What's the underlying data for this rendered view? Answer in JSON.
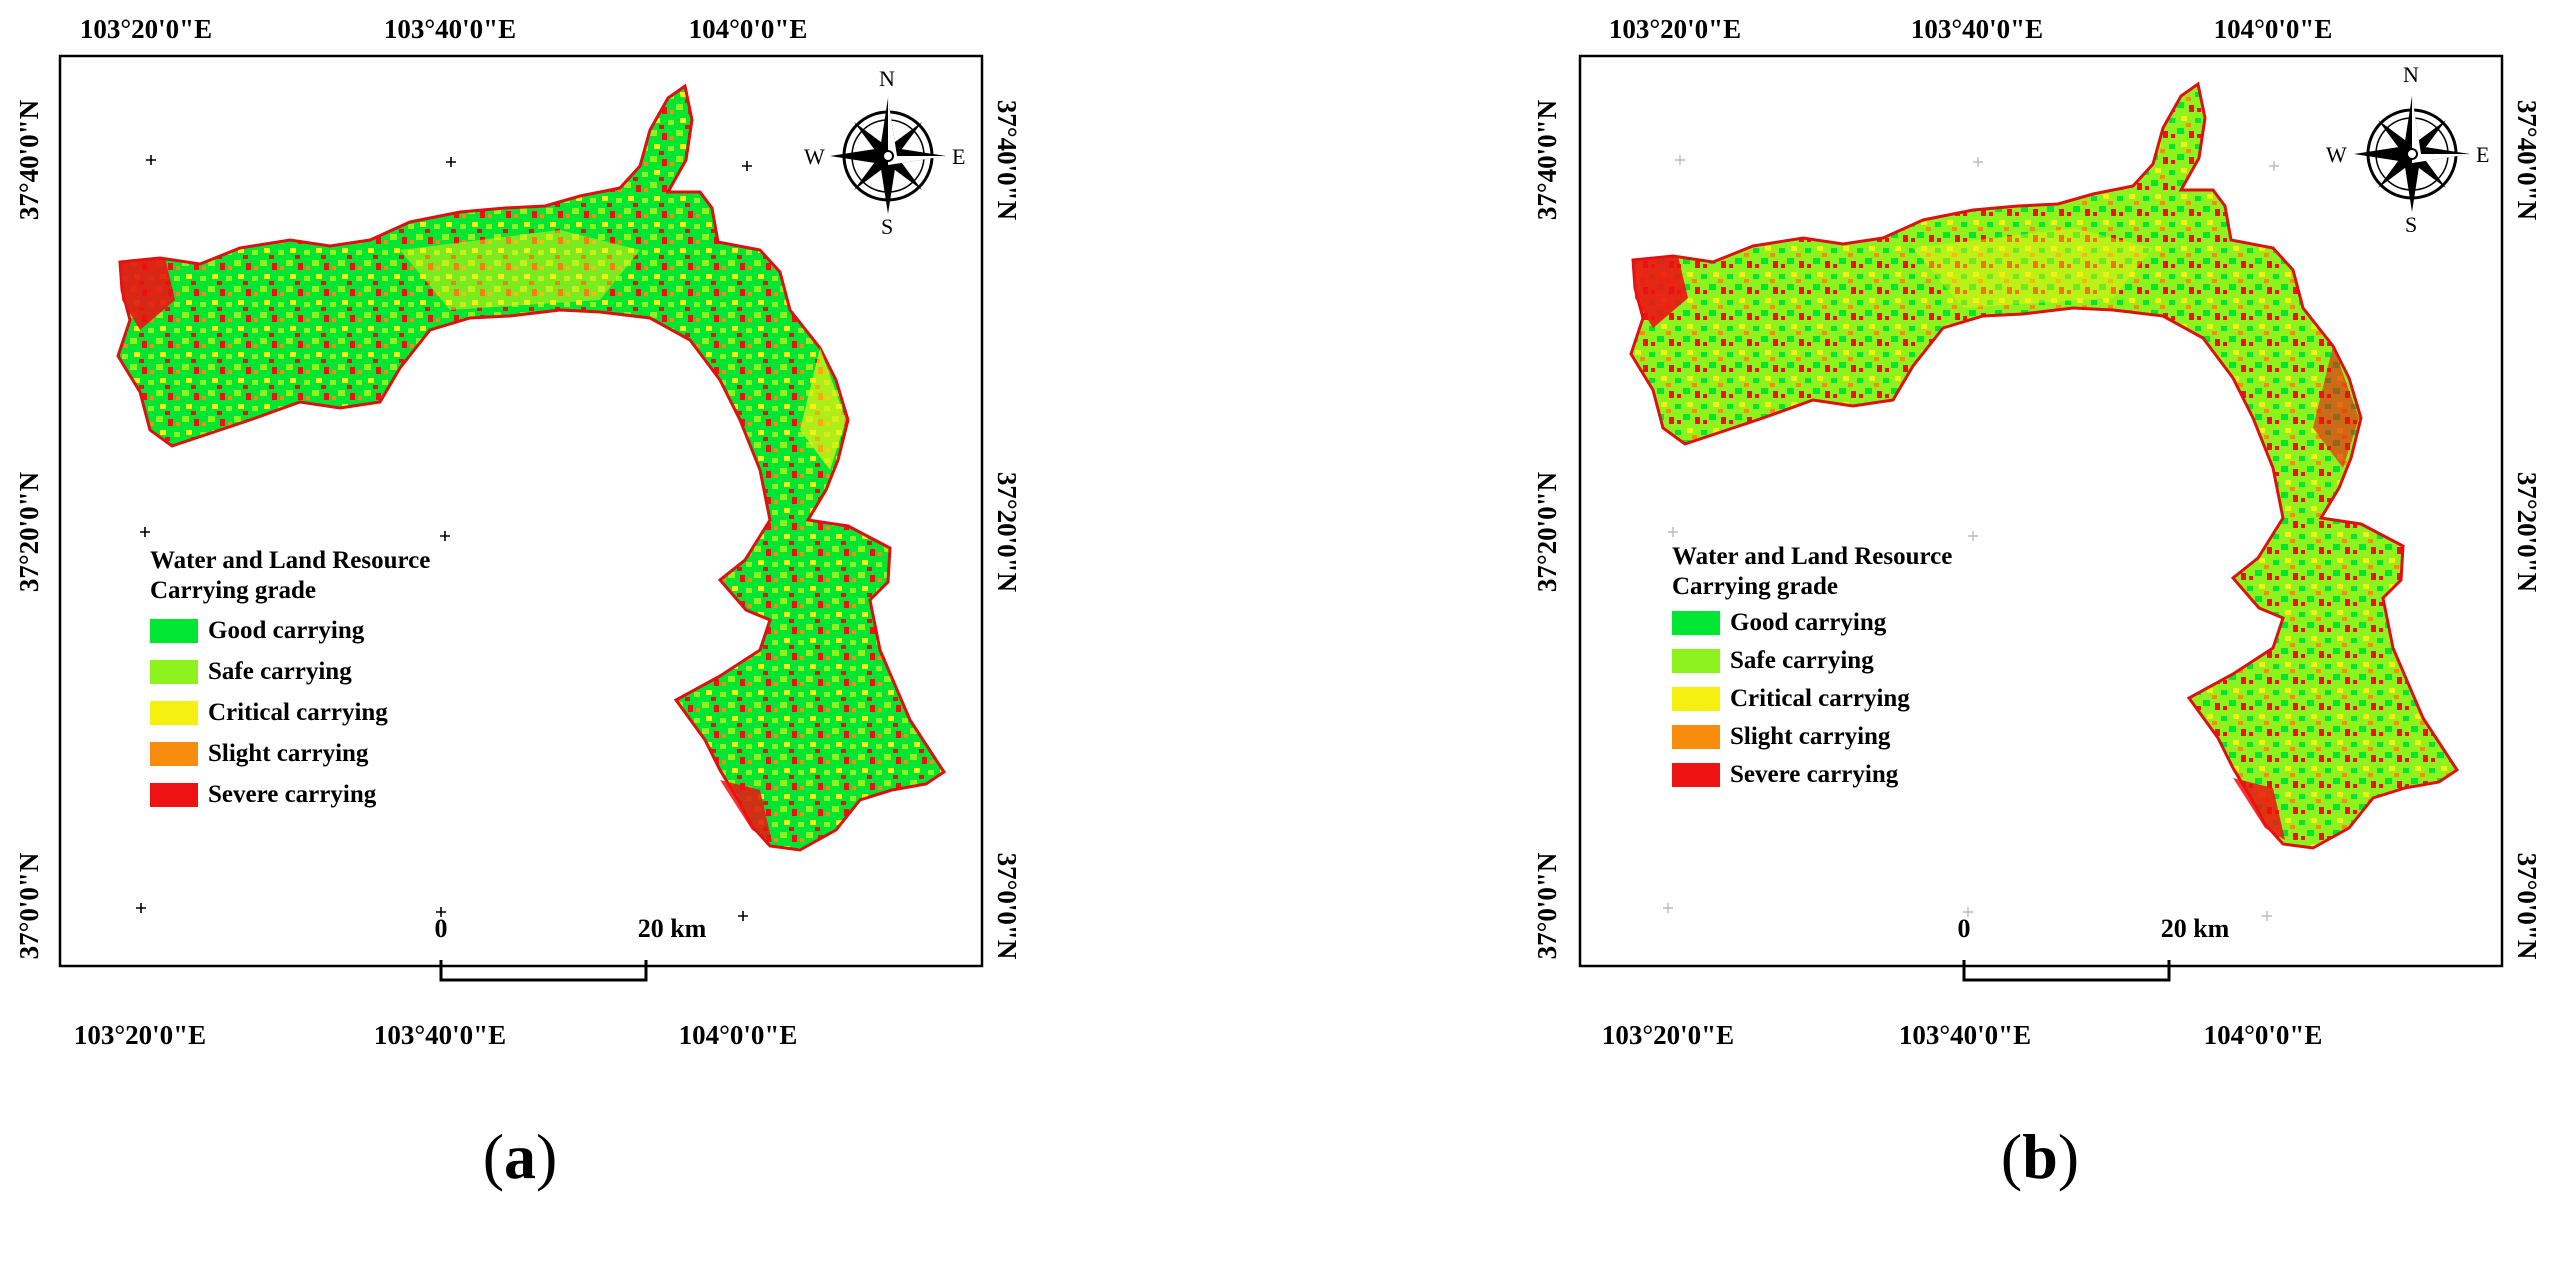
{
  "panels": [
    {
      "id": "a",
      "label_open": "(",
      "label_letter": "a",
      "label_close": ")",
      "legend": {
        "title_line1": "Water and Land Resource",
        "title_line2": "Carrying grade",
        "items": [
          {
            "label": "Good carrying",
            "color": "#00e632"
          },
          {
            "label": "Safe carrying",
            "color": "#8ef21e"
          },
          {
            "label": "Critical carrying",
            "color": "#f5f00f"
          },
          {
            "label": "Slight carrying",
            "color": "#f78c0e"
          },
          {
            "label": "Severe carrying",
            "color": "#ee1212"
          }
        ]
      }
    },
    {
      "id": "b",
      "label_open": "(",
      "label_letter": "b",
      "label_close": ")",
      "legend": {
        "title_line1": "Water and Land Resource",
        "title_line2": "Carrying grade",
        "items": [
          {
            "label": "Good carrying",
            "color": "#00e632"
          },
          {
            "label": "Safe carrying",
            "color": "#8ef21e"
          },
          {
            "label": "Critical carrying",
            "color": "#f5f00f"
          },
          {
            "label": "Slight carrying",
            "color": "#f78c0e"
          },
          {
            "label": "Severe carrying",
            "color": "#ee1212"
          }
        ]
      }
    }
  ],
  "axes": {
    "top": [
      "103°20'0\"E",
      "103°40'0\"E",
      "104°0'0\"E"
    ],
    "bottom": [
      "103°20'0\"E",
      "103°40'0\"E",
      "104°0'0\"E"
    ],
    "left": [
      "37°40'0\"N",
      "37°20'0\"N",
      "37°0'0\"N"
    ],
    "right": [
      "37°40'0\"N",
      "37°20'0\"N",
      "37°0'0\"N"
    ]
  },
  "scale_bar": {
    "start": "0",
    "end": "20 km"
  },
  "compass": {
    "north": "N",
    "south": "S",
    "east": "E",
    "west": "W"
  },
  "icons": [
    "compass-rose-icon",
    "graticule-cross-icon"
  ]
}
